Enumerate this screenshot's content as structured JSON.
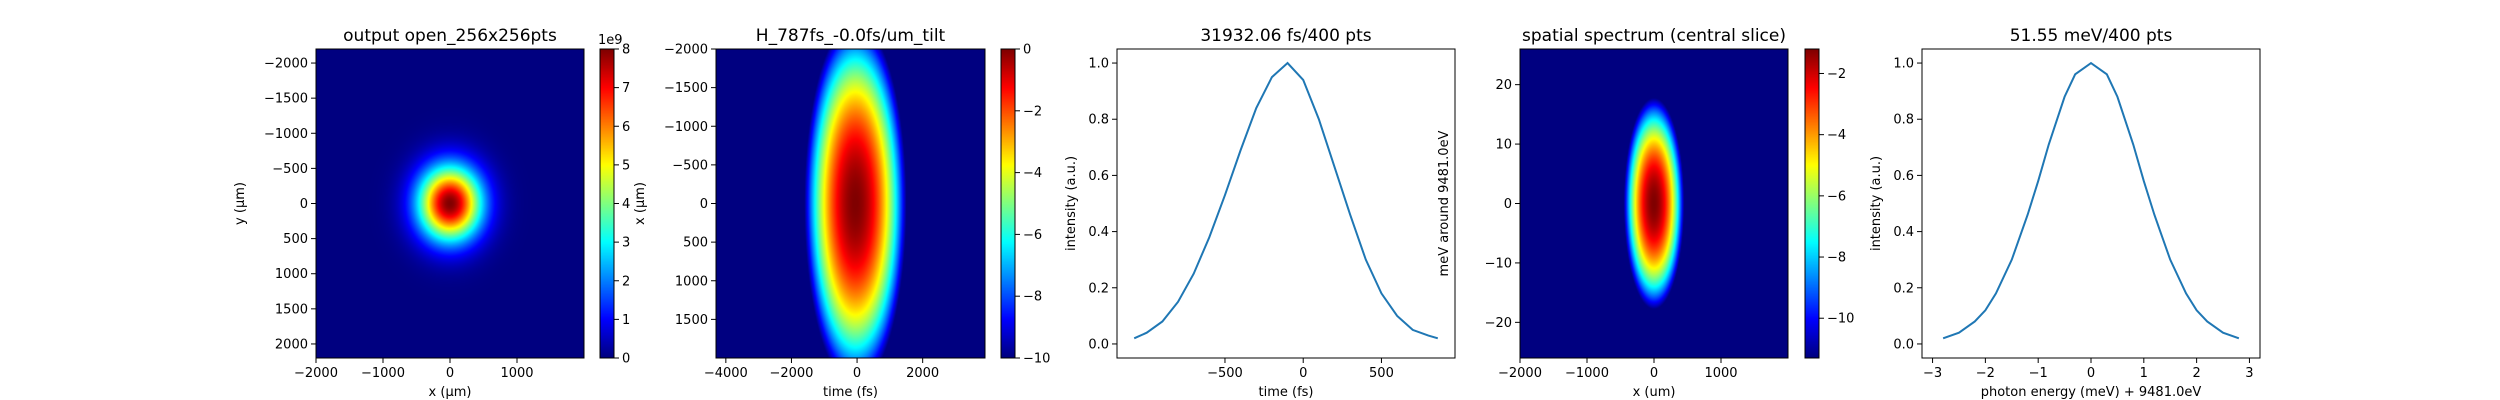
{
  "chart_data": [
    {
      "type": "heatmap",
      "title": "output open_256x256pts",
      "xlabel": "x (μm)",
      "ylabel": "y (μm)",
      "xlim": [
        -2000,
        2000
      ],
      "ylim": [
        2200,
        -2200
      ],
      "xticks": [
        "−2000",
        "−1000",
        "0",
        "1000"
      ],
      "yticks": [
        "−2000",
        "−1500",
        "−1000",
        "−500",
        "0",
        "500",
        "1000",
        "1500",
        "2000"
      ],
      "colormap": "jet",
      "blob": {
        "center": [
          0,
          0
        ],
        "sigma": [
          330,
          370
        ],
        "peak": 1.0
      },
      "colorbar": {
        "min": 0,
        "max": 8,
        "ticks": [
          "0",
          "1",
          "2",
          "3",
          "4",
          "5",
          "6",
          "7",
          "8"
        ],
        "exponent_label": "1e9"
      }
    },
    {
      "type": "heatmap",
      "title": "H_787fs_-0.0fs/um_tilt",
      "xlabel": "time (fs)",
      "ylabel": "x (μm)",
      "xlim": [
        -4300,
        3900
      ],
      "ylim": [
        2000,
        -2000
      ],
      "xticks": [
        "−4000",
        "−2000",
        "0",
        "2000"
      ],
      "yticks": [
        "−2000",
        "−1500",
        "−1000",
        "−500",
        "0",
        "500",
        "1000",
        "1500"
      ],
      "colormap": "jet",
      "blob": {
        "center": [
          -50,
          0
        ],
        "sigma": [
          660,
          1000
        ],
        "log_floor": -10
      },
      "colorbar": {
        "min": -10,
        "max": 0,
        "ticks": [
          "0",
          "−2",
          "−4",
          "−6",
          "−8",
          "−10"
        ]
      }
    },
    {
      "type": "line",
      "title": "31932.06 fs/400 pts",
      "xlabel": "time (fs)",
      "ylabel": "intensity (a.u.)",
      "xlim": [
        -1190,
        970
      ],
      "ylim": [
        -0.05,
        1.05
      ],
      "xticks": [
        "−500",
        "0",
        "500"
      ],
      "yticks": [
        "0.0",
        "0.2",
        "0.4",
        "0.6",
        "0.8",
        "1.0"
      ],
      "series": [
        {
          "color": "#1f77b4",
          "x": [
            -1080,
            -1000,
            -900,
            -800,
            -700,
            -600,
            -500,
            -400,
            -300,
            -200,
            -100,
            0,
            100,
            200,
            300,
            400,
            500,
            600,
            700,
            800,
            860
          ],
          "y": [
            0.02,
            0.04,
            0.08,
            0.15,
            0.25,
            0.38,
            0.53,
            0.69,
            0.84,
            0.95,
            1.0,
            0.94,
            0.8,
            0.63,
            0.46,
            0.3,
            0.18,
            0.1,
            0.05,
            0.03,
            0.02
          ]
        }
      ]
    },
    {
      "type": "heatmap",
      "title": "spatial spectrum (central slice)",
      "xlabel": "x (um)",
      "ylabel": "meV around 9481.0eV",
      "xlim": [
        -2000,
        2000
      ],
      "ylim": [
        -26,
        26
      ],
      "xticks": [
        "−2000",
        "−1000",
        "0",
        "1000"
      ],
      "yticks": [
        "20",
        "10",
        "0",
        "−10",
        "−20"
      ],
      "colormap": "jet",
      "blob": {
        "center": [
          0,
          0
        ],
        "sigma": [
          190,
          7.5
        ],
        "log_floor": -11.3,
        "log_max": -1.2
      },
      "colorbar": {
        "min": -11.3,
        "max": -1.2,
        "ticks": [
          "−2",
          "−4",
          "−6",
          "−8",
          "−10"
        ]
      }
    },
    {
      "type": "line",
      "title": "51.55 meV/400 pts",
      "xlabel": "photon energy (meV) + 9481.0eV",
      "ylabel": "intensity (a.u.)",
      "xlim": [
        -3.2,
        3.2
      ],
      "ylim": [
        -0.05,
        1.05
      ],
      "xticks": [
        "−3",
        "−2",
        "−1",
        "0",
        "1",
        "2",
        "3"
      ],
      "yticks": [
        "0.0",
        "0.2",
        "0.4",
        "0.6",
        "0.8",
        "1.0"
      ],
      "series": [
        {
          "color": "#1f77b4",
          "x": [
            -2.8,
            -2.5,
            -2.2,
            -2.0,
            -1.8,
            -1.5,
            -1.2,
            -1.0,
            -0.8,
            -0.5,
            -0.3,
            0.0,
            0.3,
            0.5,
            0.8,
            1.0,
            1.2,
            1.5,
            1.8,
            2.0,
            2.2,
            2.5,
            2.8
          ],
          "y": [
            0.02,
            0.04,
            0.08,
            0.12,
            0.18,
            0.3,
            0.46,
            0.58,
            0.71,
            0.88,
            0.96,
            1.0,
            0.96,
            0.88,
            0.71,
            0.58,
            0.46,
            0.3,
            0.18,
            0.12,
            0.08,
            0.04,
            0.02
          ]
        }
      ]
    }
  ]
}
